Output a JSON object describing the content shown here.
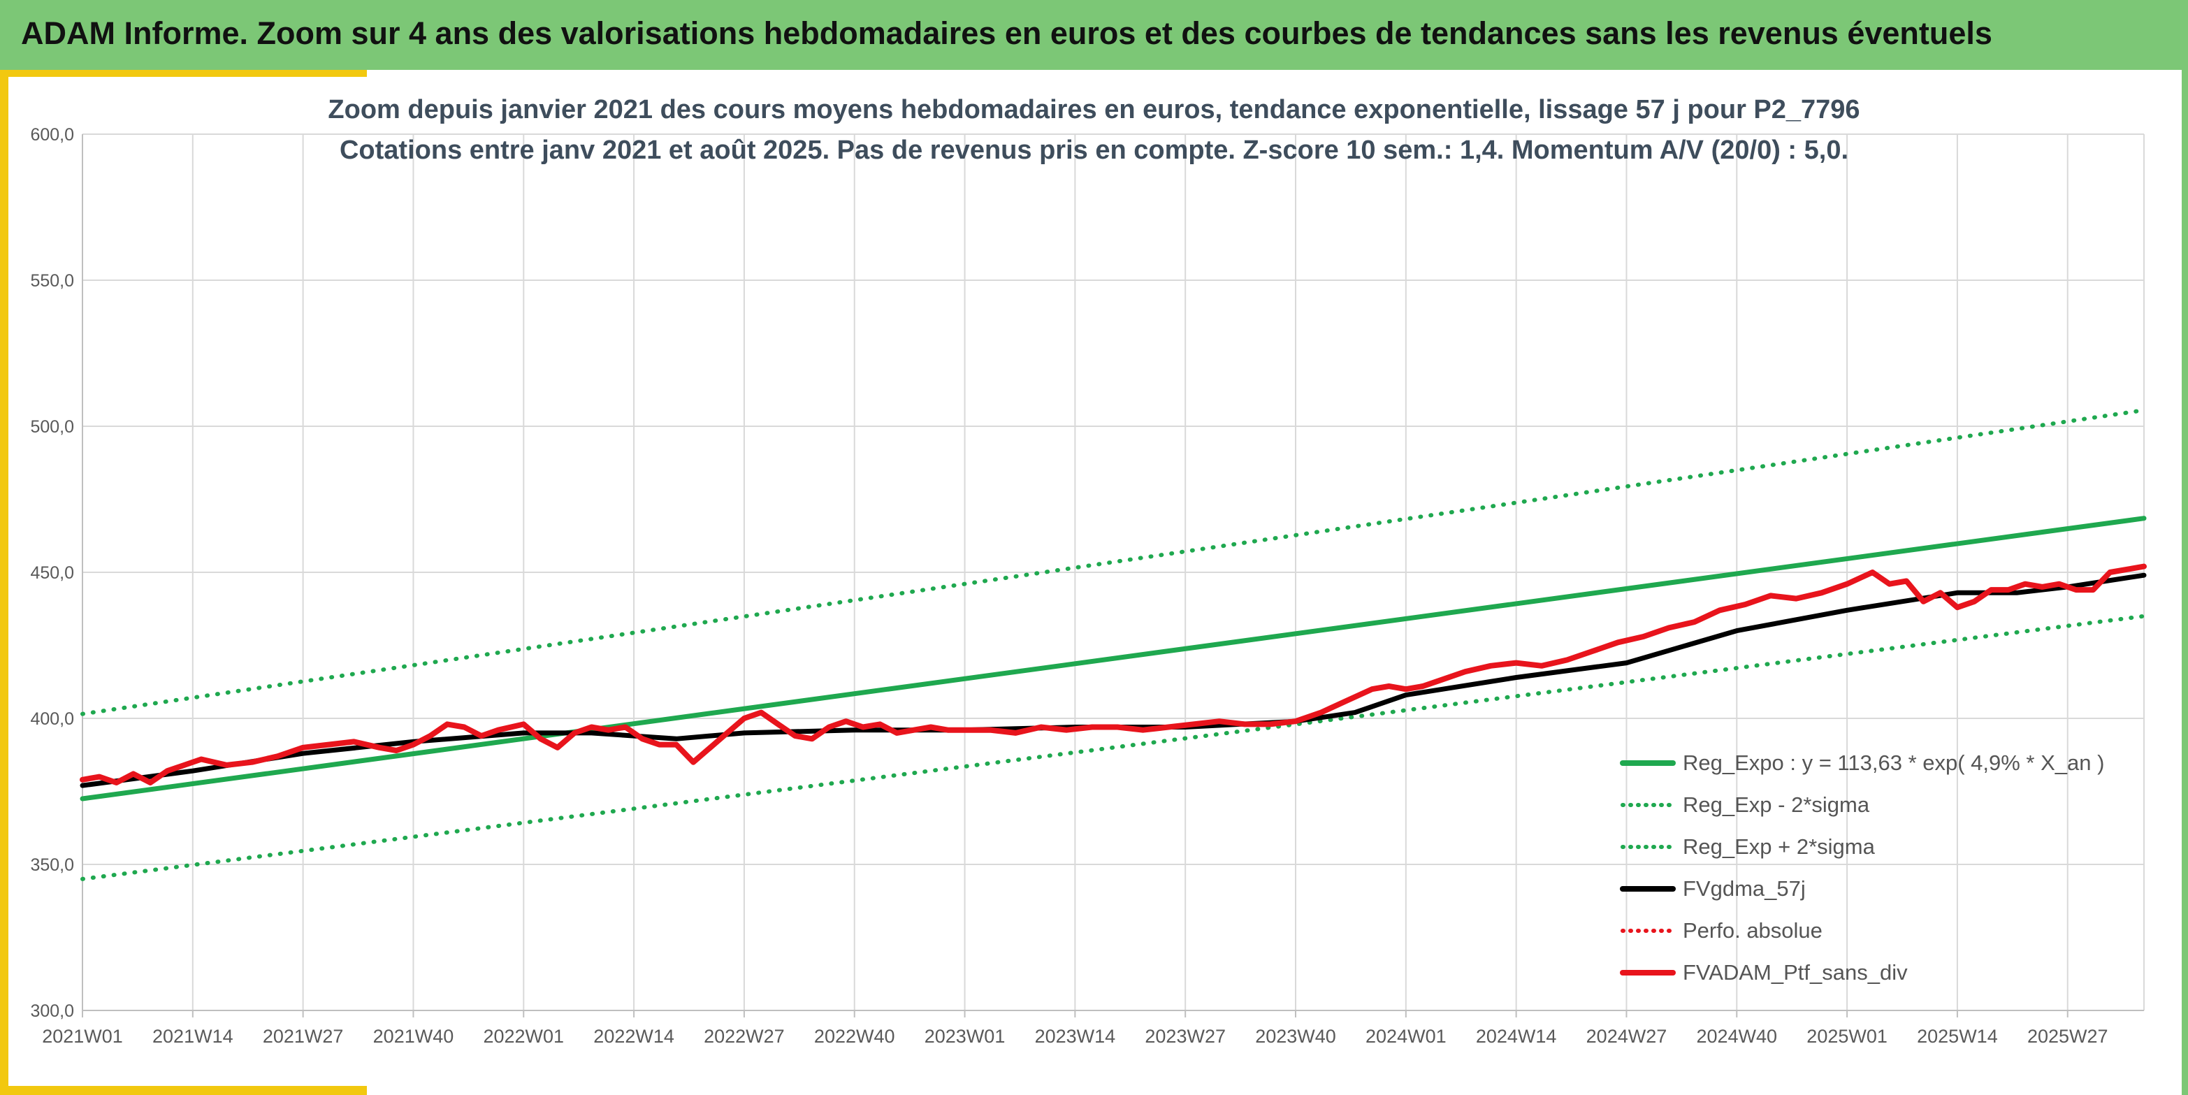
{
  "header": {
    "banner_title": "ADAM Informe. Zoom sur 4 ans des valorisations hebdomadaires en euros et des courbes de tendances sans les revenus éventuels"
  },
  "colors": {
    "banner_bg": "#7cc776",
    "accent": "#f2c80f",
    "trend_green": "#1fa84f",
    "smooth_black": "#000000",
    "perf_red": "#e8141c"
  },
  "chart_data": {
    "type": "line",
    "title_line1": "Zoom depuis janvier 2021 des cours moyens hebdomadaires en euros, tendance exponentielle, lissage 57 j pour P2_7796",
    "title_line2": "Cotations entre janv 2021 et août 2025. Pas de revenus pris en compte. Z-score 10 sem.: 1,4. Momentum A/V (20/0) : 5,0.",
    "ylim": [
      300,
      600
    ],
    "y_ticks": [
      "300,0",
      "350,0",
      "400,0",
      "450,0",
      "500,0",
      "550,0",
      "600,0"
    ],
    "x_tick_labels": [
      "2021W01",
      "2021W14",
      "2021W27",
      "2021W40",
      "2022W01",
      "2022W14",
      "2022W27",
      "2022W40",
      "2023W01",
      "2023W14",
      "2023W27",
      "2023W40",
      "2024W01",
      "2024W14",
      "2024W27",
      "2024W40",
      "2025W01",
      "2025W14",
      "2025W27"
    ],
    "weeks_total": 243,
    "grid": true,
    "legend_position": "bottom-right",
    "legend": [
      {
        "label": "Reg_Expo : y = 113,63 * exp( 4,9% *  X_an )",
        "style": "solid-green"
      },
      {
        "label": "Reg_Exp - 2*sigma",
        "style": "dotted-green"
      },
      {
        "label": "Reg_Exp + 2*sigma",
        "style": "dotted-green"
      },
      {
        "label": "FVgdma_57j",
        "style": "solid-black"
      },
      {
        "label": "Perfo. absolue",
        "style": "dotted-red"
      },
      {
        "label": "FVADAM_Ptf_sans_div",
        "style": "solid-red"
      }
    ],
    "series": [
      {
        "name": "Reg_Expo : y = 113,63 * exp( 4,9% *  X_an )",
        "x": [
          0,
          243
        ],
        "values": [
          372.5,
          468.5
        ]
      },
      {
        "name": "Reg_Exp + 2*sigma",
        "x": [
          0,
          243
        ],
        "values": [
          401.5,
          505.5
        ]
      },
      {
        "name": "Reg_Exp - 2*sigma",
        "x": [
          0,
          243
        ],
        "values": [
          345.0,
          435.0
        ]
      },
      {
        "name": "FVgdma_57j",
        "x": [
          0,
          13,
          26,
          39,
          52,
          60,
          65,
          70,
          78,
          91,
          104,
          117,
          130,
          143,
          150,
          156,
          169,
          182,
          195,
          208,
          221,
          228,
          234,
          243
        ],
        "values": [
          377,
          382,
          388,
          392,
          395,
          395,
          394,
          393,
          395,
          396,
          396,
          397,
          397,
          399,
          402,
          408,
          414,
          419,
          430,
          437,
          443,
          443,
          445,
          449
        ]
      },
      {
        "name": "FVADAM_Ptf_sans_div",
        "x": [
          0,
          2,
          4,
          6,
          8,
          10,
          12,
          14,
          17,
          20,
          23,
          26,
          29,
          32,
          35,
          37,
          39,
          41,
          43,
          45,
          47,
          49,
          52,
          54,
          56,
          58,
          60,
          62,
          64,
          66,
          68,
          70,
          72,
          74,
          76,
          78,
          80,
          82,
          84,
          86,
          88,
          90,
          92,
          94,
          96,
          98,
          100,
          102,
          104,
          107,
          110,
          113,
          116,
          119,
          122,
          125,
          128,
          131,
          134,
          137,
          140,
          143,
          146,
          149,
          152,
          154,
          156,
          158,
          160,
          163,
          166,
          169,
          172,
          175,
          178,
          181,
          184,
          187,
          190,
          193,
          196,
          199,
          202,
          205,
          208,
          211,
          213,
          215,
          217,
          219,
          221,
          223,
          225,
          227,
          229,
          231,
          233,
          235,
          237,
          239,
          241,
          243
        ],
        "values": [
          379,
          380,
          378,
          381,
          378,
          382,
          384,
          386,
          384,
          385,
          387,
          390,
          391,
          392,
          390,
          389,
          391,
          394,
          398,
          397,
          394,
          396,
          398,
          393,
          390,
          395,
          397,
          396,
          397,
          393,
          391,
          391,
          385,
          390,
          395,
          400,
          402,
          398,
          394,
          393,
          397,
          399,
          397,
          398,
          395,
          396,
          397,
          396,
          396,
          396,
          395,
          397,
          396,
          397,
          397,
          396,
          397,
          398,
          399,
          398,
          398,
          399,
          402,
          406,
          410,
          411,
          410,
          411,
          413,
          416,
          418,
          419,
          418,
          420,
          423,
          426,
          428,
          431,
          433,
          437,
          439,
          442,
          441,
          443,
          446,
          450,
          446,
          447,
          440,
          443,
          438,
          440,
          444,
          444,
          446,
          445,
          446,
          444,
          444,
          450,
          451,
          452
        ]
      }
    ]
  }
}
